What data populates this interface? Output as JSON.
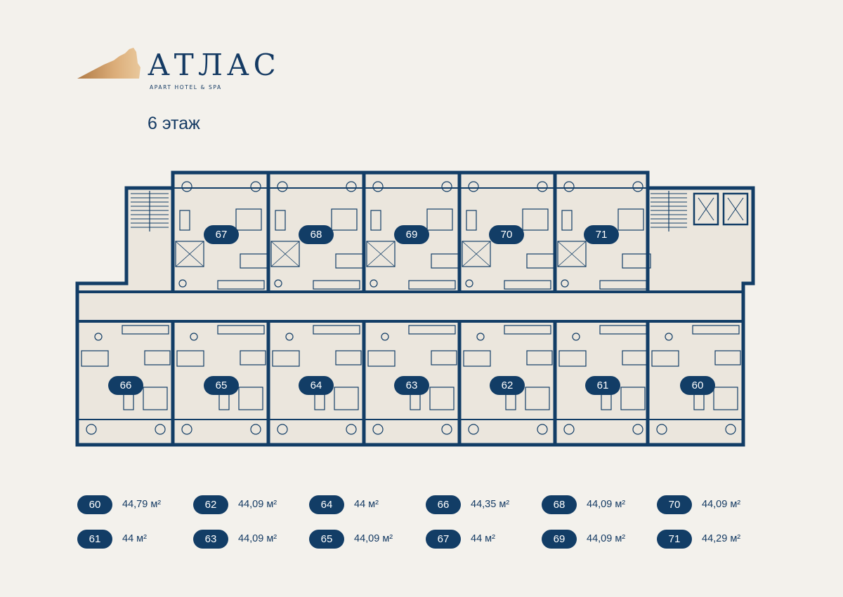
{
  "brand": {
    "name": "АТЛАС",
    "tagline": "APART HOTEL & SPA",
    "colors": {
      "primary": "#123d66",
      "accent": "#d4a56f",
      "background": "#f3f1ec",
      "room_fill": "#ebe6dd"
    }
  },
  "floor_title": "6 этаж",
  "plan": {
    "top_units": [
      "67",
      "68",
      "69",
      "70",
      "71"
    ],
    "bottom_units": [
      "66",
      "65",
      "64",
      "63",
      "62",
      "61",
      "60"
    ]
  },
  "legend": [
    {
      "unit": "60",
      "area": "44,79 м²"
    },
    {
      "unit": "61",
      "area": "44 м²"
    },
    {
      "unit": "62",
      "area": "44,09 м²"
    },
    {
      "unit": "63",
      "area": "44,09 м²"
    },
    {
      "unit": "64",
      "area": "44 м²"
    },
    {
      "unit": "65",
      "area": "44,09 м²"
    },
    {
      "unit": "66",
      "area": "44,35 м²"
    },
    {
      "unit": "67",
      "area": "44 м²"
    },
    {
      "unit": "68",
      "area": "44,09 м²"
    },
    {
      "unit": "69",
      "area": "44,09 м²"
    },
    {
      "unit": "70",
      "area": "44,09 м²"
    },
    {
      "unit": "71",
      "area": "44,29 м²"
    }
  ]
}
